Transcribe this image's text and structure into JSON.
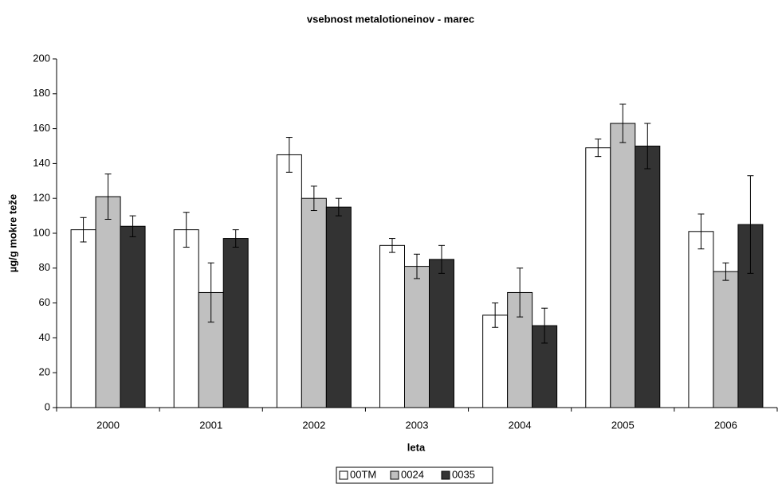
{
  "chart_data": {
    "type": "bar",
    "title": "vsebnost metalotioneinov - marec",
    "x_label": "leta",
    "y_label": "µg/g mokre teže",
    "categories": [
      "2000",
      "2001",
      "2002",
      "2003",
      "2004",
      "2005",
      "2006"
    ],
    "series": [
      {
        "name": "00TM",
        "color": "#ffffff",
        "values": [
          102,
          102,
          145,
          93,
          53,
          149,
          101
        ],
        "errors": [
          7,
          10,
          10,
          4,
          7,
          5,
          10
        ]
      },
      {
        "name": "0024",
        "color": "#c0c0c0",
        "values": [
          121,
          66,
          120,
          81,
          66,
          163,
          78
        ],
        "errors": [
          13,
          17,
          7,
          7,
          14,
          11,
          5
        ]
      },
      {
        "name": "0035",
        "color": "#333333",
        "values": [
          104,
          97,
          115,
          85,
          47,
          150,
          105
        ],
        "errors": [
          6,
          5,
          5,
          8,
          10,
          13,
          28
        ]
      }
    ],
    "ylim": [
      0,
      200
    ],
    "yticks": [
      0,
      20,
      40,
      60,
      80,
      100,
      120,
      140,
      160,
      180,
      200
    ],
    "grid": false,
    "legend": "bottom"
  }
}
